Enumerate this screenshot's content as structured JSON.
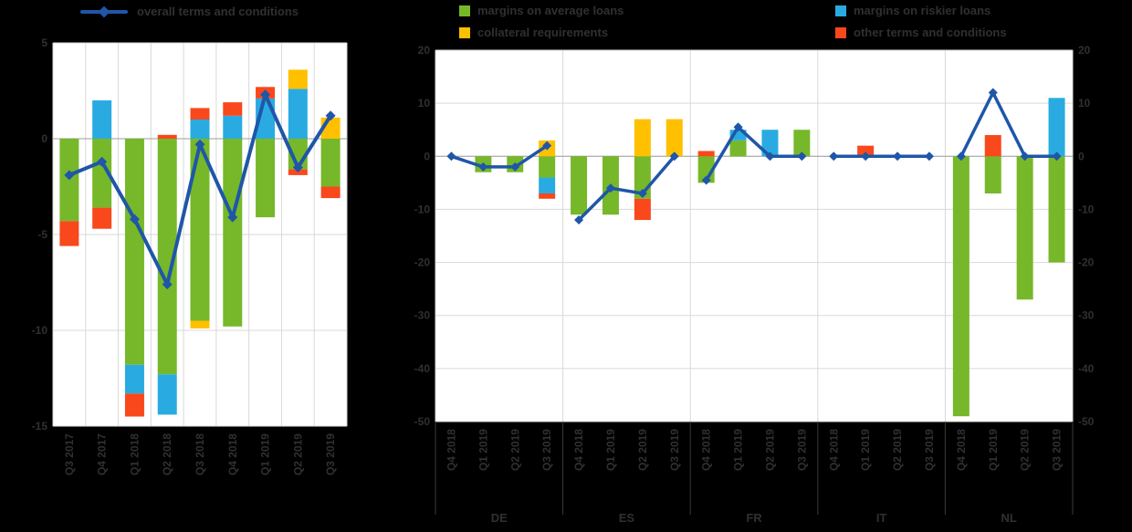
{
  "page": {
    "background": "#000000"
  },
  "colors": {
    "green": "#76B82A",
    "blue": "#29ABE2",
    "yellow": "#FFC000",
    "red": "#F8481C",
    "line": "#1F56A8",
    "plot_bg": "#FFFFFF",
    "grid": "#D9D9D9",
    "zero": "#9E9E9E",
    "separator": "#3A3A3A",
    "text": "#303030"
  },
  "legend": {
    "left": {
      "line_label": "overall terms and conditions"
    },
    "right": {
      "items": [
        {
          "label": "margins on average loans",
          "color": "green"
        },
        {
          "label": "margins on riskier loans",
          "color": "blue"
        },
        {
          "label": "collateral requirements",
          "color": "yellow"
        },
        {
          "label": "other terms and conditions",
          "color": "red"
        }
      ]
    }
  },
  "chart_data": [
    {
      "type": "bar",
      "stacked": true,
      "title": "",
      "categories": [
        "Q3 2017",
        "Q4 2017",
        "Q1 2018",
        "Q2 2018",
        "Q3 2018",
        "Q4 2018",
        "Q1 2019",
        "Q2 2019",
        "Q3 2019"
      ],
      "series": [
        {
          "name": "margins on average loans",
          "color": "green",
          "values": [
            -4.3,
            -3.6,
            -11.8,
            -12.3,
            -9.5,
            -9.8,
            -4.1,
            -1.6,
            -2.5
          ]
        },
        {
          "name": "margins on riskier loans",
          "color": "blue",
          "values": [
            0,
            2,
            -1.5,
            -2.1,
            1,
            1.2,
            2.1,
            2.6,
            0
          ]
        },
        {
          "name": "collateral requirements",
          "color": "yellow",
          "values": [
            0,
            0,
            0,
            0,
            -0.4,
            0,
            0,
            1,
            1.1
          ]
        },
        {
          "name": "other terms and conditions",
          "color": "red",
          "values": [
            -1.3,
            -1.1,
            -1.2,
            0.2,
            0.6,
            0.7,
            0.6,
            -0.3,
            -0.6
          ]
        }
      ],
      "line": {
        "name": "overall terms and conditions",
        "values": [
          -1.9,
          -1.2,
          -4.2,
          -7.6,
          -0.3,
          -4.1,
          2.3,
          -1.5,
          1.2
        ]
      },
      "ylim": [
        -15,
        5
      ],
      "yticks": [
        5,
        0,
        -5,
        -10,
        -15
      ],
      "ylabels_right": false,
      "grid": true
    },
    {
      "type": "bar",
      "stacked": true,
      "title": "",
      "groups": [
        {
          "label": "DE",
          "categories": [
            "Q4 2018",
            "Q1 2019",
            "Q2 2019",
            "Q3 2019"
          ]
        },
        {
          "label": "ES",
          "categories": [
            "Q4 2018",
            "Q1 2019",
            "Q2 2019",
            "Q3 2019"
          ]
        },
        {
          "label": "FR",
          "categories": [
            "Q4 2018",
            "Q1 2019",
            "Q2 2019",
            "Q3 2019"
          ]
        },
        {
          "label": "IT",
          "categories": [
            "Q4 2018",
            "Q1 2019",
            "Q2 2019",
            "Q3 2019"
          ]
        },
        {
          "label": "NL",
          "categories": [
            "Q4 2018",
            "Q1 2019",
            "Q2 2019",
            "Q3 2019"
          ]
        }
      ],
      "series": [
        {
          "name": "margins on average loans",
          "color": "green",
          "values": [
            [
              0,
              -3,
              -3,
              -4
            ],
            [
              -11,
              -11,
              -8,
              0
            ],
            [
              -5,
              3,
              0,
              5
            ],
            [
              0,
              0,
              0,
              0
            ],
            [
              -49,
              -7,
              -27,
              -20
            ]
          ]
        },
        {
          "name": "margins on riskier loans",
          "color": "blue",
          "values": [
            [
              0,
              0,
              0,
              -3
            ],
            [
              0,
              0,
              0,
              0
            ],
            [
              0,
              2,
              5,
              0
            ],
            [
              0,
              0,
              0,
              0
            ],
            [
              0,
              0,
              0,
              11
            ]
          ]
        },
        {
          "name": "collateral requirements",
          "color": "yellow",
          "values": [
            [
              0,
              0,
              0,
              3
            ],
            [
              0,
              0,
              7,
              7
            ],
            [
              0,
              0,
              0,
              0
            ],
            [
              0,
              0,
              0,
              0
            ],
            [
              0,
              0,
              0,
              0
            ]
          ]
        },
        {
          "name": "other terms and conditions",
          "color": "red",
          "values": [
            [
              0,
              0,
              0,
              -1
            ],
            [
              0,
              0,
              -4,
              0
            ],
            [
              1,
              0,
              0,
              0
            ],
            [
              0,
              2,
              0,
              0
            ],
            [
              0,
              4,
              0,
              0
            ]
          ]
        }
      ],
      "line": {
        "name": "overall terms and conditions",
        "values": [
          [
            0,
            -2,
            -2,
            2
          ],
          [
            -12,
            -6,
            -7,
            0
          ],
          [
            -4.5,
            5.5,
            0,
            0
          ],
          [
            0,
            0,
            0,
            0
          ],
          [
            0,
            12,
            0,
            0
          ]
        ]
      },
      "ylim": [
        -50,
        20
      ],
      "yticks": [
        20,
        10,
        0,
        -10,
        -20,
        -30,
        -40,
        -50
      ],
      "ylabels_right": true,
      "grid": true
    }
  ]
}
